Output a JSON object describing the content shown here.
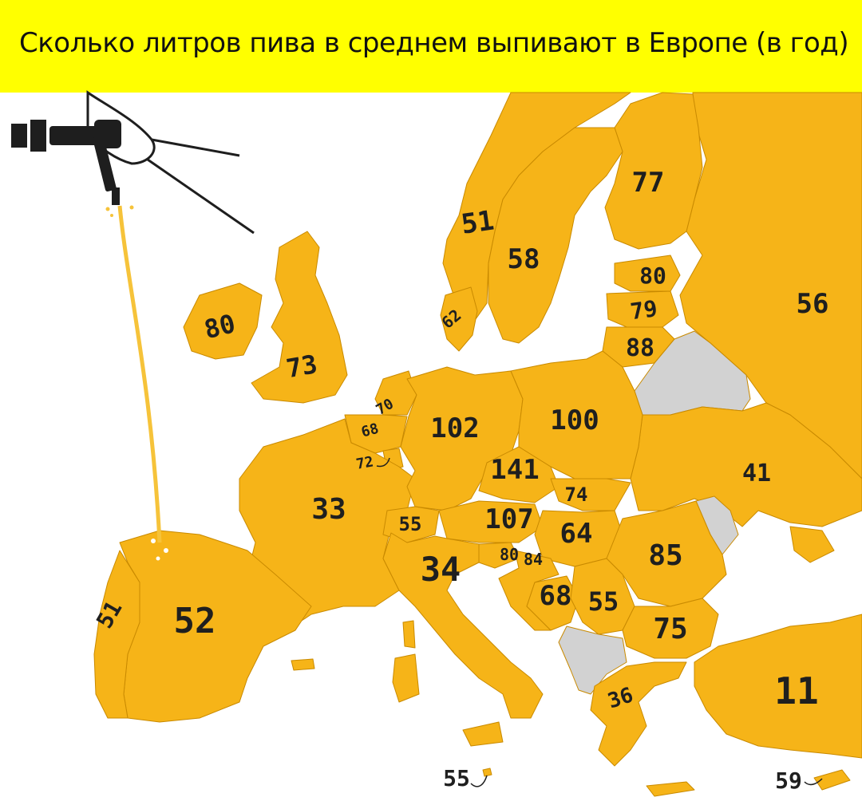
{
  "title": "Сколько литров пива в среднем выпивают в Европе (в год)",
  "colors": {
    "banner": "#ffff00",
    "land": "#f6b418",
    "nodata": "#d2d2d2",
    "border": "#c98a00",
    "water": "#ffffff",
    "beer": "#f6c33a"
  },
  "icons": [
    "beer-tap-icon"
  ],
  "countries": [
    {
      "id": "norway",
      "value": "51"
    },
    {
      "id": "sweden",
      "value": "58"
    },
    {
      "id": "finland",
      "value": "77"
    },
    {
      "id": "estonia",
      "value": "80"
    },
    {
      "id": "latvia",
      "value": "79"
    },
    {
      "id": "lithuania",
      "value": "88"
    },
    {
      "id": "russia",
      "value": "56"
    },
    {
      "id": "denmark",
      "value": "62"
    },
    {
      "id": "ireland",
      "value": "80"
    },
    {
      "id": "united-kingdom",
      "value": "73"
    },
    {
      "id": "netherlands",
      "value": "70"
    },
    {
      "id": "belgium",
      "value": "68"
    },
    {
      "id": "luxembourg",
      "value": "72"
    },
    {
      "id": "germany",
      "value": "102"
    },
    {
      "id": "poland",
      "value": "100"
    },
    {
      "id": "czechia",
      "value": "141"
    },
    {
      "id": "slovakia",
      "value": "74"
    },
    {
      "id": "ukraine",
      "value": "41"
    },
    {
      "id": "france",
      "value": "33"
    },
    {
      "id": "switzerland",
      "value": "55"
    },
    {
      "id": "austria",
      "value": "107"
    },
    {
      "id": "hungary",
      "value": "64"
    },
    {
      "id": "romania",
      "value": "85"
    },
    {
      "id": "slovenia",
      "value": "80"
    },
    {
      "id": "croatia",
      "value": "84"
    },
    {
      "id": "italy",
      "value": "34"
    },
    {
      "id": "bosnia",
      "value": "68"
    },
    {
      "id": "serbia",
      "value": "55"
    },
    {
      "id": "bulgaria",
      "value": "75"
    },
    {
      "id": "portugal",
      "value": "51"
    },
    {
      "id": "spain",
      "value": "52"
    },
    {
      "id": "greece",
      "value": "36"
    },
    {
      "id": "turkey",
      "value": "11"
    },
    {
      "id": "malta",
      "value": "55"
    },
    {
      "id": "cyprus",
      "value": "59"
    }
  ]
}
